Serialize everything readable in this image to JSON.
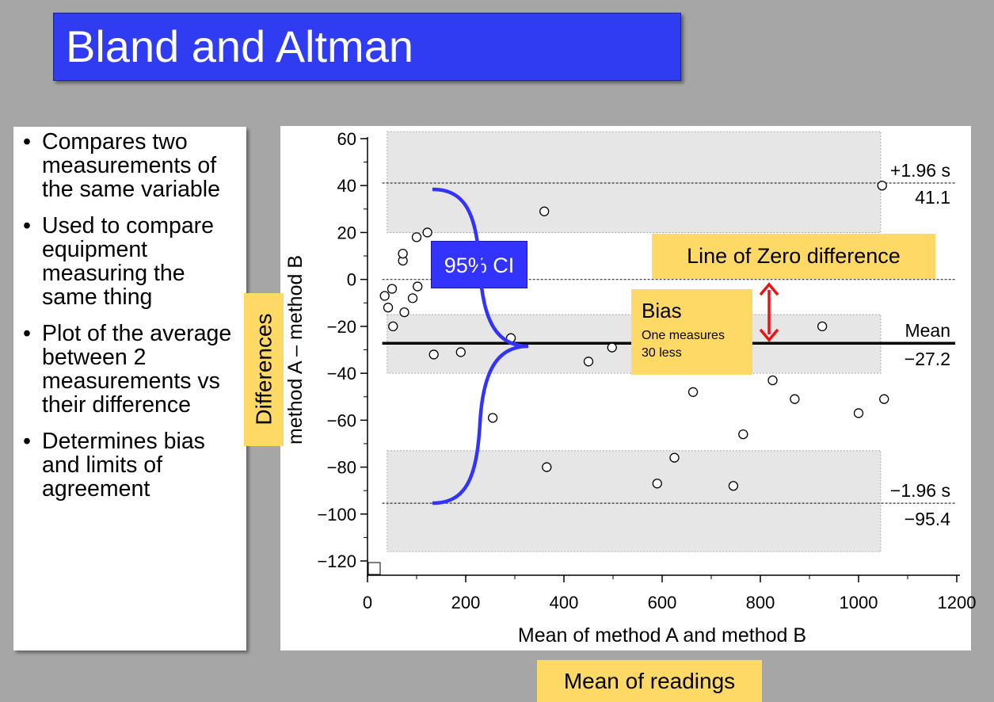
{
  "slide": {
    "title": "Bland and Altman",
    "bullets": [
      "Compares two measurements of the same variable",
      "Used to compare equipment measuring the same thing",
      "Plot of the average between 2 measurements vs their difference",
      "Determines bias and limits of agreement"
    ]
  },
  "annotations": {
    "differences": "Differences",
    "ci": "95% CI",
    "zero_line": "Line of Zero difference",
    "bias_title": "Bias",
    "bias_detail_1": "One measures",
    "bias_detail_2": "30 less",
    "mean_readings": "Mean of readings"
  },
  "colors": {
    "title_bg": "#2f3cf2",
    "annotation_bg": "#ffd966",
    "brace": "#3333ff",
    "arrow": "#ee1111",
    "band": "#e6e6e6"
  },
  "chart_data": {
    "type": "scatter",
    "xlabel": "Mean of method A and method B",
    "ylabel": "method A – method B",
    "xlim": [
      0,
      1200
    ],
    "ylim": [
      -120,
      60
    ],
    "xticks": [
      0,
      200,
      400,
      600,
      800,
      1000,
      1200
    ],
    "xtick_labels": [
      "0",
      "200",
      "400",
      "600",
      "800",
      "1000",
      "1200"
    ],
    "yticks": [
      60,
      40,
      20,
      0,
      -20,
      -40,
      -60,
      -80,
      -100,
      -120
    ],
    "ytick_labels": [
      "60",
      "40",
      "20",
      "0",
      "−20",
      "−40",
      "−60",
      "−80",
      "−100",
      "−120"
    ],
    "mean": -27.2,
    "upper_loa": 41.1,
    "lower_loa": -95.4,
    "zero_line": 0,
    "labels": {
      "upper_label": "+1.96 s",
      "upper_value": "41.1",
      "mean_label": "Mean",
      "mean_value": "−27.2",
      "lower_label": "−1.96 s",
      "lower_value": "−95.4"
    },
    "bands": [
      {
        "y_from": 20,
        "y_to": 63
      },
      {
        "y_from": -40,
        "y_to": -15
      },
      {
        "y_from": -116,
        "y_to": -73
      }
    ],
    "band_x_range": [
      40,
      1045
    ],
    "points": [
      [
        35,
        -7
      ],
      [
        42,
        -12
      ],
      [
        50,
        -4
      ],
      [
        52,
        -20
      ],
      [
        72,
        8
      ],
      [
        72,
        11
      ],
      [
        75,
        -14
      ],
      [
        92,
        -8
      ],
      [
        100,
        18
      ],
      [
        102,
        -3
      ],
      [
        122,
        20
      ],
      [
        135,
        -32
      ],
      [
        190,
        -31
      ],
      [
        255,
        -59
      ],
      [
        292,
        -25
      ],
      [
        360,
        29
      ],
      [
        365,
        -80
      ],
      [
        450,
        -35
      ],
      [
        498,
        -29
      ],
      [
        590,
        -87
      ],
      [
        625,
        -76
      ],
      [
        663,
        -48
      ],
      [
        745,
        -88
      ],
      [
        765,
        -66
      ],
      [
        825,
        -43
      ],
      [
        870,
        -51
      ],
      [
        926,
        -20
      ],
      [
        1000,
        -57
      ],
      [
        1052,
        -51
      ],
      [
        1048,
        40
      ]
    ]
  }
}
